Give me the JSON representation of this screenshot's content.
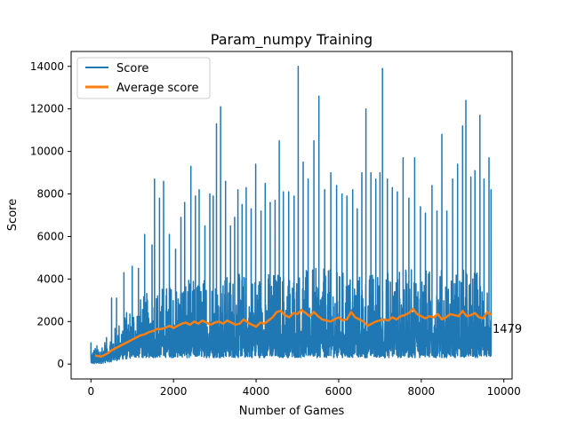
{
  "chart_data": {
    "type": "line",
    "title": "Param_numpy Training",
    "xlabel": "Number of Games",
    "ylabel": "Score",
    "xlim": [
      -480,
      10200
    ],
    "ylim": [
      -700,
      14700
    ],
    "x_ticks": [
      0,
      2000,
      4000,
      6000,
      8000,
      10000
    ],
    "x_tick_labels": [
      "0",
      "2000",
      "4000",
      "6000",
      "8000",
      "10000"
    ],
    "y_ticks": [
      0,
      2000,
      4000,
      6000,
      8000,
      10000,
      12000,
      14000
    ],
    "y_tick_labels": [
      "0",
      "2000",
      "4000",
      "6000",
      "8000",
      "10000",
      "12000",
      "14000"
    ],
    "grid": false,
    "legend_position": "top-left",
    "series": [
      {
        "name": "Score",
        "color": "#1f77b4",
        "style": "noisy per-game score",
        "x": [
          0,
          150,
          300,
          450,
          600,
          750,
          900,
          1100,
          1300,
          1500,
          1700,
          1900,
          2100,
          2300,
          2500,
          2700,
          2900,
          3100,
          3300,
          3500,
          3700,
          3900,
          4100,
          4300,
          4500,
          4700,
          4900,
          5100,
          5300,
          5500,
          5700,
          5900,
          6100,
          6300,
          6500,
          6700,
          6900,
          7100,
          7300,
          7500,
          7700,
          7900,
          8100,
          8300,
          8500,
          8700,
          8900,
          9100,
          9300,
          9500,
          9680
        ],
        "typical_high": [
          700,
          900,
          1100,
          1400,
          1800,
          2200,
          2600,
          3000,
          3300,
          3500,
          3700,
          3800,
          3900,
          4000,
          4000,
          4100,
          4100,
          4200,
          4200,
          4200,
          4300,
          4300,
          4300,
          4400,
          4400,
          4400,
          4400,
          4500,
          4500,
          4500,
          4500,
          4400,
          4400,
          4300,
          4300,
          4300,
          4400,
          4400,
          4400,
          4500,
          4500,
          4500,
          4500,
          4500,
          4500,
          4500,
          4500,
          4500,
          4500,
          4500,
          4400
        ],
        "typical_low": [
          0,
          0,
          50,
          100,
          150,
          200,
          250,
          300,
          300,
          300,
          300,
          300,
          300,
          300,
          300,
          300,
          300,
          300,
          300,
          300,
          300,
          300,
          300,
          300,
          300,
          300,
          300,
          300,
          300,
          300,
          300,
          300,
          300,
          300,
          300,
          300,
          300,
          300,
          300,
          300,
          300,
          300,
          300,
          300,
          300,
          300,
          300,
          300,
          300,
          300,
          300
        ],
        "peaks": [
          {
            "x": 0,
            "y": 1000
          },
          {
            "x": 500,
            "y": 3100
          },
          {
            "x": 620,
            "y": 3100
          },
          {
            "x": 800,
            "y": 4300
          },
          {
            "x": 1000,
            "y": 4600
          },
          {
            "x": 1150,
            "y": 4500
          },
          {
            "x": 1300,
            "y": 6100
          },
          {
            "x": 1480,
            "y": 5600
          },
          {
            "x": 1540,
            "y": 8700
          },
          {
            "x": 1660,
            "y": 7800
          },
          {
            "x": 1760,
            "y": 8600
          },
          {
            "x": 1900,
            "y": 6100
          },
          {
            "x": 2050,
            "y": 5400
          },
          {
            "x": 2180,
            "y": 6900
          },
          {
            "x": 2270,
            "y": 7600
          },
          {
            "x": 2420,
            "y": 9300
          },
          {
            "x": 2530,
            "y": 7900
          },
          {
            "x": 2620,
            "y": 8200
          },
          {
            "x": 2760,
            "y": 6500
          },
          {
            "x": 2880,
            "y": 8000
          },
          {
            "x": 2960,
            "y": 7900
          },
          {
            "x": 3040,
            "y": 11300
          },
          {
            "x": 3140,
            "y": 12100
          },
          {
            "x": 3260,
            "y": 8600
          },
          {
            "x": 3380,
            "y": 6500
          },
          {
            "x": 3480,
            "y": 6900
          },
          {
            "x": 3560,
            "y": 8200
          },
          {
            "x": 3660,
            "y": 7500
          },
          {
            "x": 3760,
            "y": 8300
          },
          {
            "x": 3880,
            "y": 7300
          },
          {
            "x": 3990,
            "y": 9400
          },
          {
            "x": 4120,
            "y": 7200
          },
          {
            "x": 4220,
            "y": 8500
          },
          {
            "x": 4340,
            "y": 7600
          },
          {
            "x": 4460,
            "y": 7700
          },
          {
            "x": 4560,
            "y": 10500
          },
          {
            "x": 4660,
            "y": 8100
          },
          {
            "x": 4790,
            "y": 8100
          },
          {
            "x": 4920,
            "y": 7900
          },
          {
            "x": 5020,
            "y": 14000
          },
          {
            "x": 5140,
            "y": 9500
          },
          {
            "x": 5260,
            "y": 8700
          },
          {
            "x": 5400,
            "y": 10500
          },
          {
            "x": 5520,
            "y": 12600
          },
          {
            "x": 5660,
            "y": 8200
          },
          {
            "x": 5810,
            "y": 9000
          },
          {
            "x": 5950,
            "y": 8400
          },
          {
            "x": 6080,
            "y": 8000
          },
          {
            "x": 6200,
            "y": 7900
          },
          {
            "x": 6340,
            "y": 8200
          },
          {
            "x": 6450,
            "y": 7300
          },
          {
            "x": 6560,
            "y": 9000
          },
          {
            "x": 6660,
            "y": 12000
          },
          {
            "x": 6780,
            "y": 9000
          },
          {
            "x": 6900,
            "y": 8700
          },
          {
            "x": 7000,
            "y": 9000
          },
          {
            "x": 7060,
            "y": 13900
          },
          {
            "x": 7180,
            "y": 8700
          },
          {
            "x": 7300,
            "y": 8300
          },
          {
            "x": 7420,
            "y": 8100
          },
          {
            "x": 7560,
            "y": 9700
          },
          {
            "x": 7700,
            "y": 7800
          },
          {
            "x": 7840,
            "y": 9700
          },
          {
            "x": 7980,
            "y": 7400
          },
          {
            "x": 8100,
            "y": 7100
          },
          {
            "x": 8260,
            "y": 8400
          },
          {
            "x": 8380,
            "y": 7200
          },
          {
            "x": 8500,
            "y": 10800
          },
          {
            "x": 8620,
            "y": 7200
          },
          {
            "x": 8760,
            "y": 8700
          },
          {
            "x": 8880,
            "y": 9400
          },
          {
            "x": 9000,
            "y": 11200
          },
          {
            "x": 9080,
            "y": 12400
          },
          {
            "x": 9200,
            "y": 8800
          },
          {
            "x": 9300,
            "y": 9100
          },
          {
            "x": 9420,
            "y": 11700
          },
          {
            "x": 9520,
            "y": 8700
          },
          {
            "x": 9640,
            "y": 9700
          },
          {
            "x": 9690,
            "y": 8200
          }
        ],
        "last_value": 1479
      },
      {
        "name": "Average score",
        "color": "#ff7f0e",
        "style": "moving average",
        "x": [
          100,
          250,
          400,
          500,
          600,
          700,
          800,
          900,
          1000,
          1100,
          1200,
          1300,
          1400,
          1500,
          1600,
          1700,
          1800,
          1900,
          2000,
          2100,
          2200,
          2300,
          2400,
          2500,
          2600,
          2700,
          2800,
          2900,
          3000,
          3100,
          3200,
          3300,
          3400,
          3500,
          3600,
          3700,
          3800,
          3900,
          4000,
          4100,
          4200,
          4300,
          4400,
          4500,
          4600,
          4700,
          4800,
          4900,
          5000,
          5100,
          5200,
          5300,
          5400,
          5500,
          5600,
          5700,
          5800,
          5900,
          6000,
          6100,
          6200,
          6300,
          6400,
          6500,
          6600,
          6700,
          6800,
          6900,
          7000,
          7100,
          7200,
          7300,
          7400,
          7500,
          7600,
          7700,
          7800,
          7900,
          8000,
          8100,
          8200,
          8300,
          8400,
          8500,
          8600,
          8700,
          8800,
          8900,
          9000,
          9100,
          9200,
          9300,
          9400,
          9500,
          9600,
          9700
        ],
        "y": [
          400,
          350,
          500,
          650,
          750,
          850,
          950,
          1050,
          1150,
          1250,
          1350,
          1400,
          1500,
          1550,
          1650,
          1650,
          1700,
          1800,
          1700,
          1800,
          1900,
          1950,
          1850,
          2000,
          1900,
          2050,
          1950,
          1850,
          1950,
          2000,
          1900,
          2050,
          1950,
          1850,
          1900,
          2100,
          1950,
          1850,
          1750,
          1950,
          1900,
          2050,
          2200,
          2450,
          2500,
          2300,
          2200,
          2400,
          2350,
          2550,
          2400,
          2250,
          2450,
          2250,
          2100,
          2050,
          2000,
          2100,
          2200,
          2050,
          2100,
          2450,
          2200,
          2100,
          2000,
          1800,
          1900,
          2000,
          2050,
          2100,
          2050,
          2200,
          2100,
          2250,
          2300,
          2400,
          2600,
          2350,
          2250,
          2150,
          2250,
          2200,
          2350,
          2100,
          2200,
          2350,
          2300,
          2250,
          2500,
          2250,
          2300,
          2400,
          2200,
          2150,
          2450,
          2300
        ]
      }
    ],
    "annotations": [
      {
        "x": 9700,
        "y": 1479,
        "text": "1479"
      }
    ]
  }
}
